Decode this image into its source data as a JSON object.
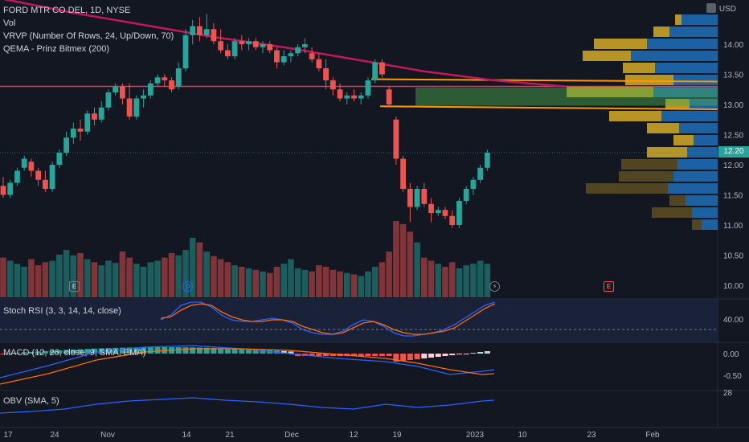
{
  "header": {
    "symbol": "FORD MTR CO DEL, 1D, NYSE",
    "vol": "Vol",
    "vrvp": "VRVP (Number Of Rows, 24, Up/Down, 70)",
    "qema": "QEMA - Prinz Bitmex (200)",
    "currency": "USD"
  },
  "price_axis": {
    "ticks": [
      "14.00",
      "13.50",
      "13.00",
      "12.50",
      "12.00",
      "11.50",
      "11.00",
      "10.50",
      "10.00"
    ],
    "last_price": "12.20"
  },
  "stoch": {
    "label": "Stoch RSI (3, 3, 14, 14, close)",
    "tick": "40.00"
  },
  "macd": {
    "label": "MACD (12, 26, close, 9, SMA, EMA)",
    "ticks": [
      "0.00",
      "-0.50"
    ]
  },
  "obv": {
    "label": "OBV (SMA, 5)",
    "tick": "28"
  },
  "time_axis": {
    "ticks": [
      "17",
      "24",
      "Nov",
      "14",
      "21",
      "Dec",
      "12",
      "19",
      "2023",
      "10",
      "23",
      "Feb"
    ]
  },
  "markers": {
    "earnings": "E",
    "dividend": "D",
    "flash": "⚡",
    "earnings2": "E"
  },
  "colors": {
    "up": "#26a69a",
    "down": "#ef5350",
    "bg": "#131722",
    "qema": "#c2185b",
    "hline": "#f23645",
    "zone": "#ff9800"
  },
  "chart_data": {
    "type": "candlestick",
    "ohlc": [
      [
        11.65,
        11.8,
        11.45,
        11.5
      ],
      [
        11.5,
        11.75,
        11.45,
        11.7
      ],
      [
        11.7,
        11.95,
        11.65,
        11.9
      ],
      [
        11.95,
        12.15,
        11.9,
        12.1
      ],
      [
        12.05,
        12.1,
        11.8,
        11.9
      ],
      [
        11.9,
        11.95,
        11.65,
        11.75
      ],
      [
        11.75,
        11.9,
        11.55,
        11.6
      ],
      [
        11.6,
        12.05,
        11.55,
        12.0
      ],
      [
        12.0,
        12.25,
        11.95,
        12.2
      ],
      [
        12.2,
        12.55,
        12.15,
        12.45
      ],
      [
        12.45,
        12.7,
        12.35,
        12.6
      ],
      [
        12.6,
        12.75,
        12.4,
        12.55
      ],
      [
        12.55,
        12.9,
        12.5,
        12.85
      ],
      [
        12.85,
        12.95,
        12.65,
        12.75
      ],
      [
        12.75,
        13.05,
        12.7,
        12.95
      ],
      [
        12.95,
        13.25,
        12.9,
        13.2
      ],
      [
        13.2,
        13.35,
        13.15,
        13.3
      ],
      [
        13.3,
        13.35,
        13.0,
        13.1
      ],
      [
        13.1,
        13.35,
        12.75,
        12.8
      ],
      [
        12.8,
        13.15,
        12.75,
        13.1
      ],
      [
        13.1,
        13.25,
        12.95,
        13.15
      ],
      [
        13.15,
        13.4,
        13.1,
        13.35
      ],
      [
        13.35,
        13.5,
        13.3,
        13.45
      ],
      [
        13.45,
        13.5,
        13.3,
        13.4
      ],
      [
        13.4,
        13.45,
        13.2,
        13.25
      ],
      [
        13.3,
        13.7,
        13.25,
        13.6
      ],
      [
        13.6,
        14.25,
        13.55,
        14.15
      ],
      [
        14.15,
        14.4,
        14.0,
        14.3
      ],
      [
        14.3,
        14.45,
        14.05,
        14.15
      ],
      [
        14.15,
        14.5,
        14.1,
        14.25
      ],
      [
        14.25,
        14.35,
        14.0,
        14.05
      ],
      [
        14.05,
        14.25,
        13.85,
        13.9
      ],
      [
        13.9,
        14.0,
        13.75,
        13.8
      ],
      [
        13.8,
        14.1,
        13.75,
        14.05
      ],
      [
        14.05,
        14.15,
        13.9,
        14.0
      ],
      [
        14.0,
        14.1,
        13.9,
        14.05
      ],
      [
        14.05,
        14.1,
        13.9,
        13.95
      ],
      [
        13.95,
        14.05,
        13.85,
        14.0
      ],
      [
        14.0,
        14.05,
        13.85,
        13.9
      ],
      [
        13.9,
        13.95,
        13.6,
        13.7
      ],
      [
        13.7,
        13.9,
        13.65,
        13.8
      ],
      [
        13.8,
        13.9,
        13.7,
        13.85
      ],
      [
        13.85,
        14.0,
        13.8,
        13.95
      ],
      [
        13.95,
        14.1,
        13.85,
        14.0
      ],
      [
        13.85,
        13.95,
        13.7,
        13.75
      ],
      [
        13.75,
        13.85,
        13.55,
        13.6
      ],
      [
        13.6,
        13.75,
        13.25,
        13.4
      ],
      [
        13.4,
        13.45,
        13.15,
        13.25
      ],
      [
        13.25,
        13.35,
        13.05,
        13.1
      ],
      [
        13.1,
        13.2,
        13.0,
        13.15
      ],
      [
        13.15,
        13.25,
        13.05,
        13.1
      ],
      [
        13.1,
        13.2,
        13.0,
        13.15
      ],
      [
        13.15,
        13.45,
        13.1,
        13.4
      ],
      [
        13.4,
        13.75,
        13.35,
        13.7
      ],
      [
        13.7,
        13.75,
        13.45,
        13.5
      ],
      [
        13.25,
        13.3,
        12.95,
        13.0
      ],
      [
        12.75,
        12.8,
        12.0,
        12.1
      ],
      [
        12.1,
        12.15,
        11.55,
        11.6
      ],
      [
        11.6,
        11.7,
        11.05,
        11.3
      ],
      [
        11.3,
        11.65,
        11.25,
        11.6
      ],
      [
        11.6,
        11.7,
        11.3,
        11.35
      ],
      [
        11.35,
        11.45,
        11.05,
        11.2
      ],
      [
        11.2,
        11.3,
        11.15,
        11.25
      ],
      [
        11.25,
        11.3,
        11.1,
        11.15
      ],
      [
        11.15,
        11.25,
        10.95,
        11.0
      ],
      [
        11.0,
        11.45,
        10.95,
        11.4
      ],
      [
        11.4,
        11.65,
        11.35,
        11.6
      ],
      [
        11.6,
        11.8,
        11.5,
        11.75
      ],
      [
        11.75,
        12.0,
        11.7,
        11.95
      ],
      [
        11.95,
        12.25,
        11.9,
        12.2
      ]
    ],
    "volume": [
      52,
      48,
      44,
      40,
      50,
      42,
      46,
      48,
      56,
      62,
      55,
      58,
      50,
      46,
      42,
      48,
      45,
      60,
      52,
      44,
      40,
      46,
      48,
      52,
      58,
      55,
      62,
      78,
      72,
      60,
      54,
      50,
      46,
      42,
      40,
      38,
      36,
      34,
      32,
      40,
      44,
      50,
      38,
      36,
      34,
      42,
      40,
      36,
      34,
      32,
      30,
      28,
      34,
      40,
      46,
      60,
      100,
      96,
      86,
      72,
      52,
      48,
      44,
      40,
      46,
      38,
      42,
      44,
      48,
      44
    ],
    "ylim": [
      9.8,
      14.6
    ],
    "horizontal_line": 13.3,
    "zone": [
      12.98,
      13.28
    ],
    "qema": [
      [
        0,
        14.75
      ],
      [
        10,
        14.52
      ],
      [
        20,
        14.32
      ],
      [
        30,
        14.12
      ],
      [
        40,
        13.95
      ],
      [
        50,
        13.75
      ],
      [
        60,
        13.55
      ],
      [
        70,
        13.4
      ],
      [
        80,
        13.3
      ]
    ],
    "vrvp": [
      {
        "price": 14.4,
        "up": 45,
        "down": 8
      },
      {
        "price": 14.2,
        "up": 60,
        "down": 20
      },
      {
        "price": 14.0,
        "up": 88,
        "down": 66
      },
      {
        "price": 13.8,
        "up": 108,
        "down": 60
      },
      {
        "price": 13.6,
        "up": 78,
        "down": 40
      },
      {
        "price": 13.4,
        "up": 55,
        "down": 60
      },
      {
        "price": 13.2,
        "up": 80,
        "down": 108
      },
      {
        "price": 13.0,
        "up": 35,
        "down": 30
      },
      {
        "price": 12.8,
        "up": 70,
        "down": 65
      },
      {
        "price": 12.6,
        "up": 48,
        "down": 40
      },
      {
        "price": 12.4,
        "up": 30,
        "down": 25
      },
      {
        "price": 12.2,
        "up": 38,
        "down": 50
      },
      {
        "price": 12.0,
        "up": 50,
        "down": 70
      },
      {
        "price": 11.8,
        "up": 55,
        "down": 68
      },
      {
        "price": 11.6,
        "up": 62,
        "down": 102
      },
      {
        "price": 11.4,
        "up": 40,
        "down": 20
      },
      {
        "price": 11.2,
        "up": 32,
        "down": 50
      },
      {
        "price": 11.0,
        "up": 20,
        "down": 12
      }
    ]
  }
}
